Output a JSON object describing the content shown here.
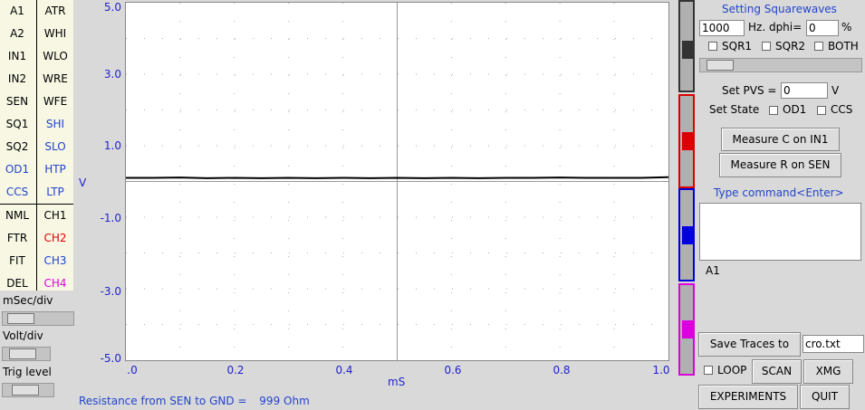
{
  "colors": {
    "panel_bg": "#f7f7e4",
    "window_bg": "#d9d9d9",
    "ch1": "#000000",
    "ch2": "#dd0000",
    "ch3": "#0000dd",
    "ch4": "#dd00dd",
    "blue_text": "#2244cc"
  },
  "left_buttons": {
    "col1": [
      {
        "label": "A1",
        "color": "#000000"
      },
      {
        "label": "A2",
        "color": "#000000"
      },
      {
        "label": "IN1",
        "color": "#000000"
      },
      {
        "label": "IN2",
        "color": "#000000"
      },
      {
        "label": "SEN",
        "color": "#000000"
      },
      {
        "label": "SQ1",
        "color": "#000000"
      },
      {
        "label": "SQ2",
        "color": "#000000"
      },
      {
        "label": "OD1",
        "color": "#2244cc"
      },
      {
        "label": "CCS",
        "color": "#2244cc"
      },
      {
        "label": "NML",
        "color": "#000000"
      },
      {
        "label": "FTR",
        "color": "#000000"
      },
      {
        "label": "FIT",
        "color": "#000000"
      },
      {
        "label": "DEL",
        "color": "#000000"
      }
    ],
    "col2": [
      {
        "label": "ATR",
        "color": "#000000"
      },
      {
        "label": "WHI",
        "color": "#000000"
      },
      {
        "label": "WLO",
        "color": "#000000"
      },
      {
        "label": "WRE",
        "color": "#000000"
      },
      {
        "label": "WFE",
        "color": "#000000"
      },
      {
        "label": "SHI",
        "color": "#2244cc"
      },
      {
        "label": "SLO",
        "color": "#2244cc"
      },
      {
        "label": "HTP",
        "color": "#2244cc"
      },
      {
        "label": "LTP",
        "color": "#2244cc"
      },
      {
        "label": "CH1",
        "color": "#000000"
      },
      {
        "label": "CH2",
        "color": "#dd0000"
      },
      {
        "label": "CH3",
        "color": "#2244cc"
      },
      {
        "label": "CH4",
        "color": "#dd00dd"
      }
    ]
  },
  "sliders": {
    "msec_div": {
      "label": "mSec/div",
      "level": 0.1
    },
    "volt_div": {
      "label": "Volt/div",
      "level": 0.3
    },
    "trig_level": {
      "label": "Trig level",
      "level": 0.4
    }
  },
  "plot": {
    "y_ticks": [
      "5.0",
      "3.0",
      "1.0",
      "-1.0",
      "-3.0",
      "-5.0"
    ],
    "x_ticks": [
      ".0",
      "0.2",
      "0.4",
      "0.6",
      "0.8",
      "1.0"
    ],
    "ylabel": "V",
    "xlabel": "mS"
  },
  "chart_data": {
    "type": "line",
    "xlabel": "mS",
    "ylabel": "V",
    "xlim": [
      0,
      1.0
    ],
    "ylim": [
      -5.0,
      5.0
    ],
    "grid": true,
    "series": [
      {
        "color": "#000000",
        "x": [
          0,
          0.05,
          0.1,
          0.15,
          0.2,
          0.25,
          0.3,
          0.35,
          0.4,
          0.45,
          0.5,
          0.55,
          0.6,
          0.65,
          0.7,
          0.75,
          0.8,
          0.85,
          0.9,
          0.95,
          1.0
        ],
        "y": [
          0.05,
          0.05,
          0.06,
          0.04,
          0.05,
          0.04,
          0.05,
          0.04,
          0.05,
          0.04,
          0.05,
          0.04,
          0.05,
          0.04,
          0.05,
          0.05,
          0.06,
          0.05,
          0.05,
          0.05,
          0.07
        ]
      }
    ]
  },
  "status": {
    "resistance_label": "Resistance from SEN to GND =",
    "resistance_value": "999 Ohm"
  },
  "squarewave": {
    "title": "Setting Squarewaves",
    "freq": "1000",
    "freq_unit": "Hz. dphi=",
    "dphi": "0",
    "dphi_unit": "%",
    "sqr1": "SQR1",
    "sqr2": "SQR2",
    "both": "BOTH",
    "slider_level": 0.05
  },
  "pvs": {
    "label": "Set PVS =",
    "value": "0",
    "unit": "V"
  },
  "state": {
    "label": "Set State",
    "od1": "OD1",
    "ccs": "CCS"
  },
  "measure": {
    "c_button": "Measure C on IN1",
    "r_button": "Measure R on SEN"
  },
  "command": {
    "label": "Type command<Enter>",
    "value": "",
    "result": "A1"
  },
  "save": {
    "button": "Save Traces to",
    "filename": "cro.txt"
  },
  "controls": {
    "loop": "LOOP",
    "scan": "SCAN",
    "xmg": "XMG",
    "experiments": "EXPERIMENTS",
    "quit": "QUIT"
  },
  "channel_sliders": [
    {
      "color": "#333333",
      "level": 0.55
    },
    {
      "color": "#dd0000",
      "level": 0.5
    },
    {
      "color": "#0000dd",
      "level": 0.5
    },
    {
      "color": "#dd00dd",
      "level": 0.5
    }
  ]
}
